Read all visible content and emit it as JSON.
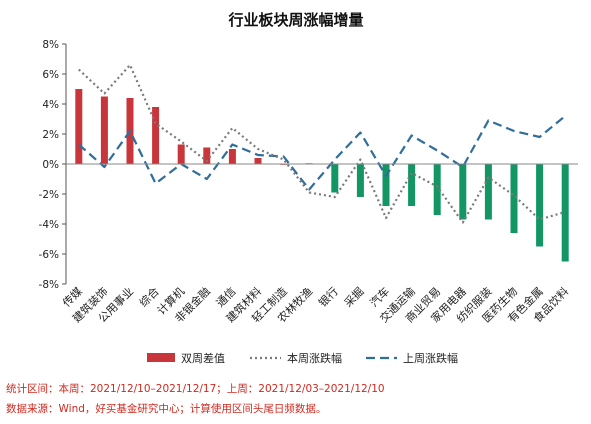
{
  "chart_data": {
    "type": "bar+line",
    "title": "行业板块周涨幅增量",
    "categories": [
      "传媒",
      "建筑装饰",
      "公用事业",
      "综合",
      "计算机",
      "非银金融",
      "通信",
      "建筑材料",
      "轻工制造",
      "农林牧渔",
      "银行",
      "采掘",
      "汽车",
      "交通运输",
      "商业贸易",
      "家用电器",
      "纺织服装",
      "医药生物",
      "有色金属",
      "食品饮料"
    ],
    "ylim": [
      -8,
      8
    ],
    "yticks": [
      -8,
      -6,
      -4,
      -2,
      0,
      2,
      4,
      6,
      8
    ],
    "ytick_labels": [
      "-8%",
      "-6%",
      "-4%",
      "-2%",
      "0%",
      "2%",
      "4%",
      "6%",
      "8%"
    ],
    "series": [
      {
        "name": "双周差值",
        "kind": "bar",
        "values": [
          5.0,
          4.5,
          4.4,
          3.8,
          1.3,
          1.1,
          1.0,
          0.4,
          0.0,
          0.05,
          -1.9,
          -2.2,
          -2.8,
          -2.8,
          -3.4,
          -3.7,
          -3.7,
          -4.6,
          -5.5,
          -6.5
        ]
      },
      {
        "name": "本周涨跌幅",
        "kind": "line-dotted",
        "values": [
          6.3,
          4.7,
          6.6,
          2.7,
          1.5,
          0.2,
          2.4,
          1.0,
          0.3,
          -1.9,
          -2.2,
          0.3,
          -3.6,
          -0.6,
          -1.5,
          -3.9,
          -0.9,
          -2.1,
          -3.7,
          -3.2
        ]
      },
      {
        "name": "上周涨跌幅",
        "kind": "line-dashed",
        "values": [
          1.3,
          -0.2,
          2.2,
          -1.3,
          0.0,
          -1.0,
          1.3,
          0.6,
          0.5,
          -1.7,
          0.3,
          2.1,
          -0.8,
          1.9,
          0.9,
          -0.2,
          2.9,
          2.2,
          1.8,
          3.2
        ]
      }
    ],
    "grid": false,
    "legend_position": "bottom",
    "colors": {
      "pos_bar": "#c8353a",
      "neg_bar": "#129664",
      "this_week": "#7a7a7a",
      "last_week": "#2f6e9c",
      "title": "#111111"
    }
  },
  "footnotes": {
    "line1": "统计区间：本周：2021/12/10–2021/12/17；上周：2021/12/03–2021/12/10",
    "line2": "数据来源：Wind，好买基金研究中心；计算使用区间头尾日频数据。"
  }
}
